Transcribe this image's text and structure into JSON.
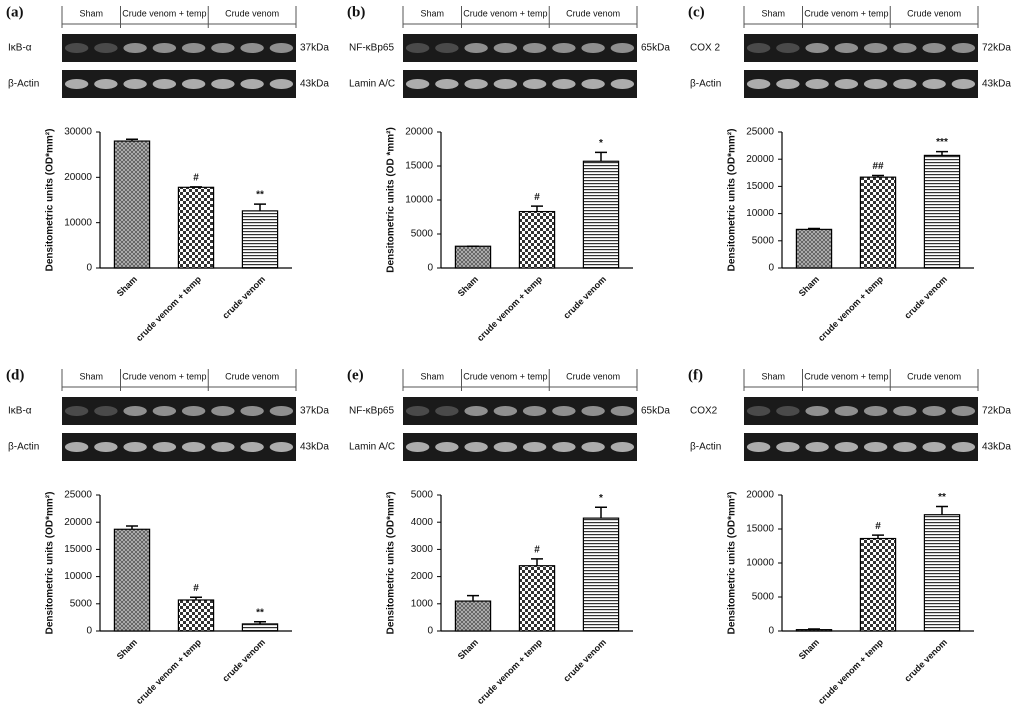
{
  "chart_data": [
    {
      "type": "bar",
      "panel": "(a)",
      "blot": {
        "groups": [
          "Sham",
          "Crude venom + temp",
          "Crude venom"
        ],
        "rows": [
          {
            "protein": "IκB-α",
            "size": "37kDa"
          },
          {
            "protein": "β-Actin",
            "size": "43kDa"
          }
        ]
      },
      "y_label": "Densitometric units (OD*mm²)",
      "categories": [
        "Sham",
        "crude venom + temp",
        "crude venom"
      ],
      "values": [
        28000,
        17800,
        12600
      ],
      "errors": [
        400,
        100,
        1500
      ],
      "significance": [
        null,
        "#",
        "**"
      ],
      "ylim": [
        0,
        30000
      ],
      "yticks": [
        0,
        10000,
        20000,
        30000
      ]
    },
    {
      "type": "bar",
      "panel": "(b)",
      "blot": {
        "groups": [
          "Sham",
          "Crude venom + temp",
          "Crude venom"
        ],
        "rows": [
          {
            "protein": "NF-κBp65",
            "size": "65kDa"
          },
          {
            "protein": "Lamin A/C",
            "size": null
          }
        ]
      },
      "y_label": "Densitometric units (OD *mm²)",
      "categories": [
        "Sham",
        "crude venom + temp",
        "crude venom"
      ],
      "values": [
        3200,
        8300,
        15700
      ],
      "errors": [
        0,
        800,
        1300
      ],
      "significance": [
        null,
        "#",
        "*"
      ],
      "ylim": [
        0,
        20000
      ],
      "yticks": [
        0,
        5000,
        10000,
        15000,
        20000
      ]
    },
    {
      "type": "bar",
      "panel": "(c)",
      "blot": {
        "groups": [
          "Sham",
          "Crude venom + temp",
          "Crude venom"
        ],
        "rows": [
          {
            "protein": "COX 2",
            "size": "72kDa"
          },
          {
            "protein": "β-Actin",
            "size": "43kDa"
          }
        ]
      },
      "y_label": "Densitometric units (OD*mm²)",
      "categories": [
        "Sham",
        "crude venom + temp",
        "crude venom"
      ],
      "values": [
        7100,
        16700,
        20700
      ],
      "errors": [
        150,
        300,
        700
      ],
      "significance": [
        null,
        "##",
        "***"
      ],
      "ylim": [
        0,
        25000
      ],
      "yticks": [
        0,
        5000,
        10000,
        15000,
        20000,
        25000
      ]
    },
    {
      "type": "bar",
      "panel": "(d)",
      "blot": {
        "groups": [
          "Sham",
          "Crude venom + temp",
          "Crude venom"
        ],
        "rows": [
          {
            "protein": "IκB-α",
            "size": "37kDa"
          },
          {
            "protein": "β-Actin",
            "size": "43kDa"
          }
        ]
      },
      "y_label": "Densitometric units (OD*mm²)",
      "categories": [
        "Sham",
        "crude venom + temp",
        "crude venom"
      ],
      "values": [
        18700,
        5700,
        1300
      ],
      "errors": [
        600,
        500,
        400
      ],
      "significance": [
        null,
        "#",
        "**"
      ],
      "ylim": [
        0,
        25000
      ],
      "yticks": [
        0,
        5000,
        10000,
        15000,
        20000,
        25000
      ]
    },
    {
      "type": "bar",
      "panel": "(e)",
      "blot": {
        "groups": [
          "Sham",
          "Crude venom + temp",
          "Crude venom"
        ],
        "rows": [
          {
            "protein": "NF-κBp65",
            "size": "65kDa"
          },
          {
            "protein": "Lamin A/C",
            "size": null
          }
        ]
      },
      "y_label": "Densitometric units (OD*mm²)",
      "categories": [
        "Sham",
        "crude venom + temp",
        "crude venom"
      ],
      "values": [
        1100,
        2400,
        4150
      ],
      "errors": [
        200,
        250,
        400
      ],
      "significance": [
        null,
        "#",
        "*"
      ],
      "ylim": [
        0,
        5000
      ],
      "yticks": [
        0,
        1000,
        2000,
        3000,
        4000,
        5000
      ]
    },
    {
      "type": "bar",
      "panel": "(f)",
      "blot": {
        "groups": [
          "Sham",
          "Crude venom + temp",
          "Crude venom"
        ],
        "rows": [
          {
            "protein": "COX2",
            "size": "72kDa"
          },
          {
            "protein": "β-Actin",
            "size": "43kDa"
          }
        ]
      },
      "y_label": "Densitometric units (OD*mm²)",
      "categories": [
        "Sham",
        "crude venom + temp",
        "crude venom"
      ],
      "values": [
        200,
        13600,
        17100
      ],
      "errors": [
        100,
        500,
        1200
      ],
      "significance": [
        null,
        "#",
        "**"
      ],
      "ylim": [
        0,
        20000
      ],
      "yticks": [
        0,
        5000,
        10000,
        15000,
        20000
      ]
    }
  ]
}
